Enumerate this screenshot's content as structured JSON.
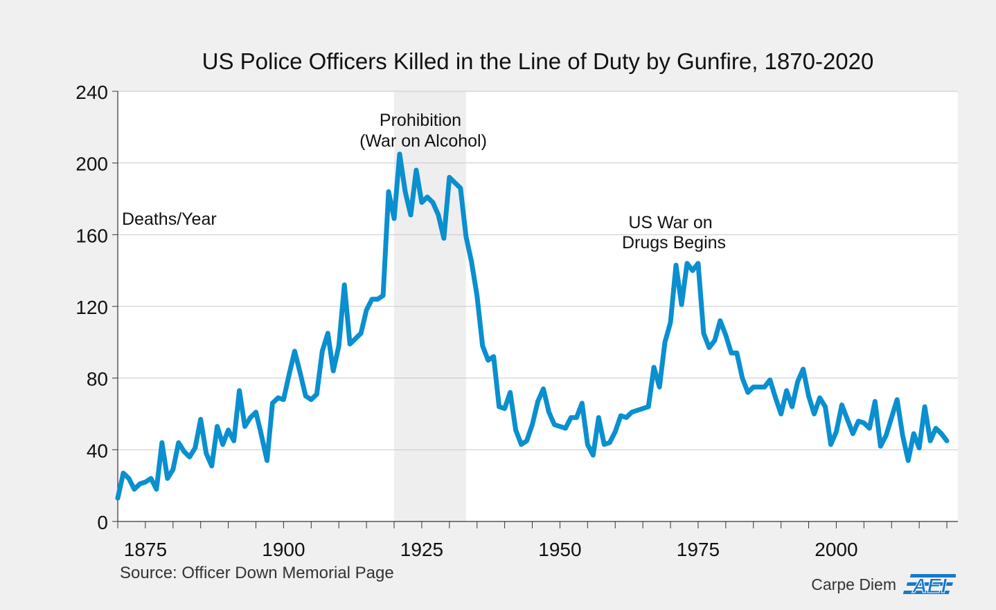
{
  "chart_data": {
    "type": "line",
    "title": "US Police Officers Killed in the Line of Duty by Gunfire, 1870-2020",
    "ylabel": "Deaths/Year",
    "xlabel": "",
    "xlim": [
      1870,
      2022
    ],
    "ylim": [
      0,
      240
    ],
    "y_ticks": [
      "0",
      "40",
      "80",
      "120",
      "160",
      "200",
      "240"
    ],
    "x_ticks": [
      "1875",
      "1900",
      "1925",
      "1950",
      "1975",
      "2000"
    ],
    "grid": "horizontal",
    "line_color": "#0a8fcf",
    "shaded_region": {
      "x_start": 1920,
      "x_end": 1933,
      "color": "#eeeeee"
    },
    "annotations": {
      "prohibition_line1": "Prohibition",
      "prohibition_line2": "(War on Alcohol)",
      "drugs_line1": "US War on",
      "drugs_line2": "Drugs Begins"
    },
    "series": [
      {
        "name": "Deaths/Year",
        "x": [
          1870,
          1871,
          1872,
          1873,
          1874,
          1875,
          1876,
          1877,
          1878,
          1879,
          1880,
          1881,
          1882,
          1883,
          1884,
          1885,
          1886,
          1887,
          1888,
          1889,
          1890,
          1891,
          1892,
          1893,
          1894,
          1895,
          1896,
          1897,
          1898,
          1899,
          1900,
          1901,
          1902,
          1903,
          1904,
          1905,
          1906,
          1907,
          1908,
          1909,
          1910,
          1911,
          1912,
          1913,
          1914,
          1915,
          1916,
          1917,
          1918,
          1919,
          1920,
          1921,
          1922,
          1923,
          1924,
          1925,
          1926,
          1927,
          1928,
          1929,
          1930,
          1931,
          1932,
          1933,
          1934,
          1935,
          1936,
          1937,
          1938,
          1939,
          1940,
          1941,
          1942,
          1943,
          1944,
          1945,
          1946,
          1947,
          1948,
          1949,
          1950,
          1951,
          1952,
          1953,
          1954,
          1955,
          1956,
          1957,
          1958,
          1959,
          1960,
          1961,
          1962,
          1963,
          1964,
          1965,
          1966,
          1967,
          1968,
          1969,
          1970,
          1971,
          1972,
          1973,
          1974,
          1975,
          1976,
          1977,
          1978,
          1979,
          1980,
          1981,
          1982,
          1983,
          1984,
          1985,
          1986,
          1987,
          1988,
          1989,
          1990,
          1991,
          1992,
          1993,
          1994,
          1995,
          1996,
          1997,
          1998,
          1999,
          2000,
          2001,
          2002,
          2003,
          2004,
          2005,
          2006,
          2007,
          2008,
          2009,
          2010,
          2011,
          2012,
          2013,
          2014,
          2015,
          2016,
          2017,
          2018,
          2019,
          2020
        ],
        "values": [
          13,
          27,
          24,
          18,
          21,
          22,
          24,
          18,
          44,
          24,
          29,
          44,
          39,
          36,
          41,
          57,
          38,
          31,
          53,
          43,
          51,
          45,
          73,
          53,
          58,
          61,
          48,
          34,
          66,
          69,
          68,
          82,
          95,
          83,
          70,
          68,
          71,
          95,
          105,
          84,
          98,
          132,
          99,
          102,
          105,
          118,
          124,
          124,
          126,
          184,
          169,
          205,
          184,
          171,
          196,
          178,
          181,
          178,
          171,
          158,
          192,
          189,
          186,
          159,
          145,
          126,
          98,
          90,
          92,
          64,
          63,
          72,
          51,
          43,
          45,
          54,
          67,
          74,
          61,
          54,
          53,
          52,
          58,
          58,
          66,
          43,
          37,
          58,
          43,
          44,
          50,
          59,
          58,
          61,
          62,
          63,
          64,
          86,
          75,
          100,
          111,
          143,
          121,
          144,
          140,
          144,
          105,
          97,
          101,
          112,
          104,
          94,
          94,
          80,
          72,
          75,
          75,
          75,
          79,
          69,
          60,
          73,
          64,
          78,
          85,
          70,
          60,
          69,
          64,
          43,
          50,
          65,
          57,
          49,
          56,
          55,
          52,
          67,
          42,
          48,
          58,
          68,
          48,
          34,
          49,
          41,
          64,
          45,
          52,
          49,
          45
        ]
      }
    ]
  },
  "source_text": "Source: Officer Down Memorial Page",
  "brand": {
    "text": "Carpe Diem",
    "logo_text": "AEI"
  }
}
